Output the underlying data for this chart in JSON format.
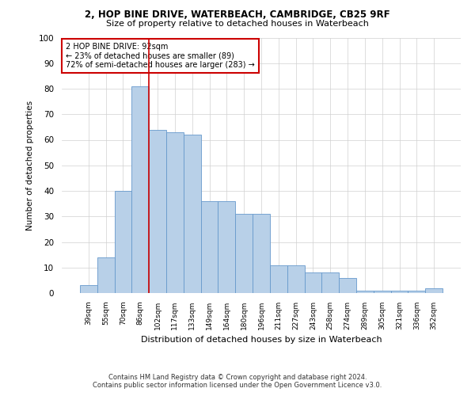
{
  "title1": "2, HOP BINE DRIVE, WATERBEACH, CAMBRIDGE, CB25 9RF",
  "title2": "Size of property relative to detached houses in Waterbeach",
  "xlabel": "Distribution of detached houses by size in Waterbeach",
  "ylabel": "Number of detached properties",
  "footer1": "Contains HM Land Registry data © Crown copyright and database right 2024.",
  "footer2": "Contains public sector information licensed under the Open Government Licence v3.0.",
  "categories": [
    "39sqm",
    "55sqm",
    "70sqm",
    "86sqm",
    "102sqm",
    "117sqm",
    "133sqm",
    "149sqm",
    "164sqm",
    "180sqm",
    "196sqm",
    "211sqm",
    "227sqm",
    "243sqm",
    "258sqm",
    "274sqm",
    "289sqm",
    "305sqm",
    "321sqm",
    "336sqm",
    "352sqm"
  ],
  "values": [
    3,
    14,
    40,
    81,
    64,
    63,
    62,
    36,
    36,
    31,
    31,
    11,
    11,
    8,
    8,
    6,
    1,
    1,
    1,
    1,
    2
  ],
  "bar_color": "#b8d0e8",
  "bar_edge_color": "#6699cc",
  "vline_color": "#cc0000",
  "vline_pos": 3.5,
  "annotation_text": "2 HOP BINE DRIVE: 92sqm\n← 23% of detached houses are smaller (89)\n72% of semi-detached houses are larger (283) →",
  "annotation_box_color": "#cc0000",
  "ylim": [
    0,
    100
  ],
  "background_color": "#ffffff",
  "grid_color": "#d0d0d0"
}
